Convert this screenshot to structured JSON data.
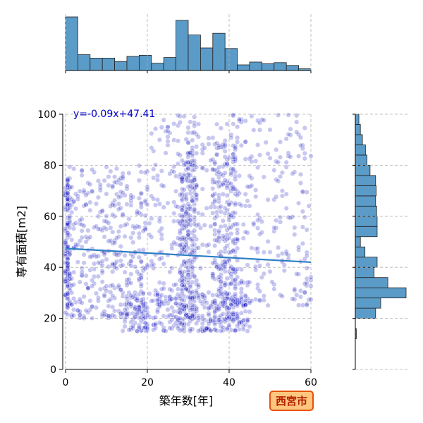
{
  "chart_data": {
    "type": "scatter",
    "xlabel": "築年数[年]",
    "ylabel": "専有面積[m2]",
    "xlim": [
      0,
      60
    ],
    "ylim": [
      0,
      100
    ],
    "xticks": [
      "0",
      "20",
      "40",
      "60"
    ],
    "yticks": [
      "0",
      "20",
      "40",
      "60",
      "80",
      "100"
    ],
    "grid": true,
    "annotation": "y=-0.09x+47.41",
    "badge": "西宮市",
    "regression": {
      "slope": -0.09,
      "intercept": 47.41
    },
    "colors": {
      "points": "#0000bb",
      "bars": "#5b9bc8",
      "line": "#2e7fc4",
      "equation": "#0000cc",
      "badge_fill": "#ffc680",
      "badge_border": "#e8520a",
      "badge_text": "#b32000"
    },
    "x_histogram": {
      "bin_width": 3,
      "bins_start": 0,
      "counts": [
        95,
        28,
        22,
        22,
        16,
        25,
        27,
        13,
        23,
        89,
        63,
        40,
        66,
        39,
        10,
        15,
        12,
        14,
        9,
        3
      ]
    },
    "y_histogram": {
      "bin_width": 4,
      "bins_start": 12,
      "counts": [
        2,
        0,
        40,
        50,
        100,
        64,
        37,
        43,
        19,
        10,
        43,
        43,
        42,
        40,
        41,
        40,
        29,
        23,
        20,
        14,
        10,
        7,
        4,
        4,
        3,
        3,
        2
      ]
    },
    "scatter": {
      "approx_points": 1800,
      "clusters": [
        {
          "x": [
            0,
            1
          ],
          "y": [
            25,
            75
          ],
          "share": 0.07
        },
        {
          "x": [
            0,
            20
          ],
          "y": [
            20,
            80
          ],
          "share": 0.22
        },
        {
          "x": [
            14,
            45
          ],
          "y": [
            15,
            30
          ],
          "share": 0.18
        },
        {
          "x": [
            28,
            32
          ],
          "y": [
            20,
            85
          ],
          "share": 0.14
        },
        {
          "x": [
            36,
            42
          ],
          "y": [
            20,
            90
          ],
          "share": 0.12
        },
        {
          "x": [
            20,
            60
          ],
          "y": [
            25,
            100
          ],
          "share": 0.27
        }
      ]
    }
  }
}
